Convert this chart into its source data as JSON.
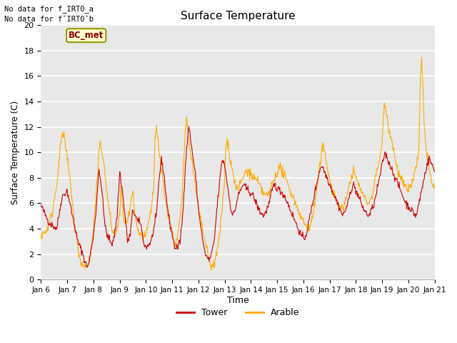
{
  "title": "Surface Temperature",
  "xlabel": "Time",
  "ylabel": "Surface Temperature (C)",
  "ylim": [
    0,
    20
  ],
  "x_tick_labels": [
    "Jan 6",
    "Jan 7",
    "Jan 8",
    "Jan 9",
    "Jan 10",
    "Jan 11",
    "Jan 12",
    "Jan 13",
    "Jan 14",
    "Jan 15",
    "Jan 16",
    "Jan 17",
    "Jan 18",
    "Jan 19",
    "Jan 20",
    "Jan 21"
  ],
  "note_line1": "No data for f_IRT0_a",
  "note_line2": "No data for f¯IRT0¯b",
  "bc_met_label": "BC_met",
  "legend_tower": "Tower",
  "legend_arable": "Arable",
  "tower_color": "#cc0000",
  "arable_color": "#ffaa00",
  "bg_color": "#e8e8e8",
  "grid_color": "#ffffff",
  "bc_met_facecolor": "#ffffcc",
  "bc_met_edgecolor": "#999900",
  "bc_met_textcolor": "#880000",
  "n_days": 15,
  "pts_per_day": 48
}
